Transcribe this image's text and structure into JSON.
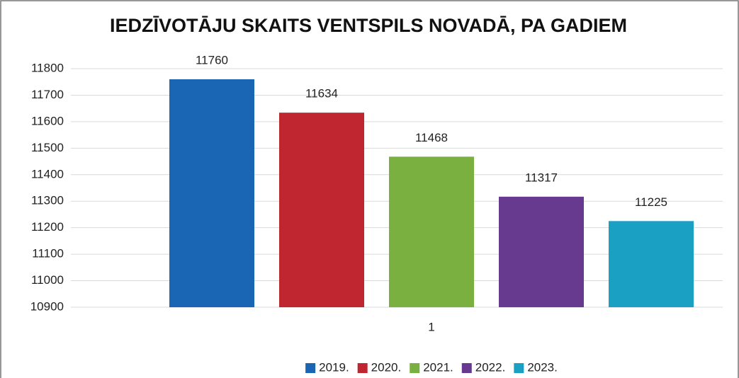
{
  "chart_data": {
    "type": "bar",
    "title": "IEDZĪVOTĀJU SKAITS VENTSPILS NOVADĀ, PA GADIEM",
    "categories": [
      "1"
    ],
    "series": [
      {
        "name": "2019.",
        "color": "#1a66b5",
        "values": [
          11760
        ]
      },
      {
        "name": "2020.",
        "color": "#c0262f",
        "values": [
          11634
        ]
      },
      {
        "name": "2021.",
        "color": "#7ab040",
        "values": [
          11468
        ]
      },
      {
        "name": "2022.",
        "color": "#673a8f",
        "values": [
          11317
        ]
      },
      {
        "name": "2023.",
        "color": "#1aa0c2",
        "values": [
          11225
        ]
      }
    ],
    "ylim": [
      10900,
      11800
    ],
    "yticks": [
      10900,
      11000,
      11100,
      11200,
      11300,
      11400,
      11500,
      11600,
      11700,
      11800
    ],
    "grid": true,
    "legend": "bottom"
  }
}
